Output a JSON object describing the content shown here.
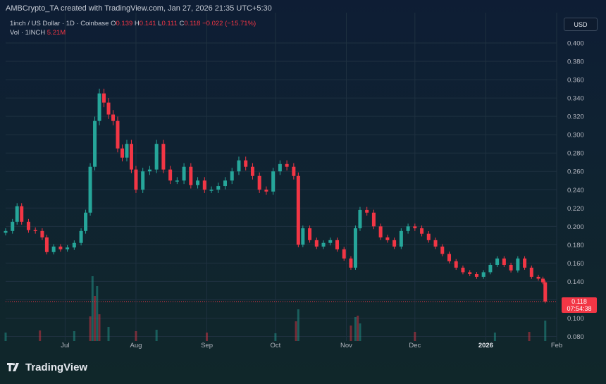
{
  "header": {
    "created_line": "AMBCrypto_TA created with TradingView.com, Jan 27, 2026 21:35 UTC+5:30"
  },
  "legend": {
    "symbol": "1inch / US Dollar · 1D · Coinbase",
    "o_label": "O",
    "o_value": "0.139",
    "h_label": "H",
    "h_value": "0.141",
    "l_label": "L",
    "l_value": "0.111",
    "c_label": "C",
    "c_value": "0.118",
    "change": "−0.022 (−15.71%)",
    "vol_label": "Vol · 1INCH",
    "vol_value": "5.21M"
  },
  "currency_button": "USD",
  "price_tag": {
    "price": "0.118",
    "countdown": "07:54:38"
  },
  "brand": {
    "name": "TradingView"
  },
  "colors": {
    "up": "#26a69a",
    "down": "#f23645",
    "axis_text": "#b2b5be"
  },
  "chart_data": {
    "type": "candlestick",
    "title": "",
    "xlabel": "",
    "ylabel": "",
    "ylim": [
      0.075,
      0.41
    ],
    "y_ticks": [
      "0.400",
      "0.380",
      "0.360",
      "0.340",
      "0.320",
      "0.300",
      "0.280",
      "0.260",
      "0.240",
      "0.220",
      "0.200",
      "0.180",
      "0.160",
      "0.140",
      "0.120",
      "0.100",
      "0.080"
    ],
    "x_ticks": [
      {
        "label": "Jul",
        "date": "2025-07-01",
        "bold": false
      },
      {
        "label": "Aug",
        "date": "2025-08-01",
        "bold": false
      },
      {
        "label": "Sep",
        "date": "2025-09-01",
        "bold": false
      },
      {
        "label": "Oct",
        "date": "2025-10-01",
        "bold": false
      },
      {
        "label": "Nov",
        "date": "2025-11-01",
        "bold": false
      },
      {
        "label": "Dec",
        "date": "2025-12-01",
        "bold": false
      },
      {
        "label": "2026",
        "date": "2026-01-01",
        "bold": true
      },
      {
        "label": "Feb",
        "date": "2026-02-01",
        "bold": false
      }
    ],
    "x_range": [
      "2025-06-05",
      "2026-02-01"
    ],
    "series": [
      {
        "date": "2025-06-05",
        "close": 0.195
      },
      {
        "date": "2025-06-08",
        "close": 0.205
      },
      {
        "date": "2025-06-10",
        "close": 0.222
      },
      {
        "date": "2025-06-12",
        "close": 0.205
      },
      {
        "date": "2025-06-15",
        "close": 0.196
      },
      {
        "date": "2025-06-18",
        "close": 0.195
      },
      {
        "date": "2025-06-21",
        "close": 0.188
      },
      {
        "date": "2025-06-23",
        "close": 0.172
      },
      {
        "date": "2025-06-26",
        "close": 0.178
      },
      {
        "date": "2025-06-29",
        "close": 0.175
      },
      {
        "date": "2025-07-02",
        "close": 0.177
      },
      {
        "date": "2025-07-05",
        "close": 0.182
      },
      {
        "date": "2025-07-08",
        "close": 0.195
      },
      {
        "date": "2025-07-10",
        "close": 0.215
      },
      {
        "date": "2025-07-12",
        "close": 0.265
      },
      {
        "date": "2025-07-14",
        "close": 0.315
      },
      {
        "date": "2025-07-16",
        "close": 0.345
      },
      {
        "date": "2025-07-18",
        "close": 0.335
      },
      {
        "date": "2025-07-20",
        "close": 0.322
      },
      {
        "date": "2025-07-22",
        "close": 0.315
      },
      {
        "date": "2025-07-24",
        "close": 0.285
      },
      {
        "date": "2025-07-26",
        "close": 0.275
      },
      {
        "date": "2025-07-28",
        "close": 0.29
      },
      {
        "date": "2025-07-30",
        "close": 0.262
      },
      {
        "date": "2025-08-01",
        "close": 0.24
      },
      {
        "date": "2025-08-04",
        "close": 0.26
      },
      {
        "date": "2025-08-07",
        "close": 0.262
      },
      {
        "date": "2025-08-10",
        "close": 0.29
      },
      {
        "date": "2025-08-13",
        "close": 0.262
      },
      {
        "date": "2025-08-16",
        "close": 0.25
      },
      {
        "date": "2025-08-19",
        "close": 0.25
      },
      {
        "date": "2025-08-22",
        "close": 0.265
      },
      {
        "date": "2025-08-25",
        "close": 0.245
      },
      {
        "date": "2025-08-28",
        "close": 0.25
      },
      {
        "date": "2025-08-31",
        "close": 0.24
      },
      {
        "date": "2025-09-03",
        "close": 0.24
      },
      {
        "date": "2025-09-06",
        "close": 0.244
      },
      {
        "date": "2025-09-09",
        "close": 0.25
      },
      {
        "date": "2025-09-12",
        "close": 0.26
      },
      {
        "date": "2025-09-15",
        "close": 0.272
      },
      {
        "date": "2025-09-18",
        "close": 0.265
      },
      {
        "date": "2025-09-21",
        "close": 0.255
      },
      {
        "date": "2025-09-24",
        "close": 0.24
      },
      {
        "date": "2025-09-27",
        "close": 0.238
      },
      {
        "date": "2025-09-30",
        "close": 0.26
      },
      {
        "date": "2025-10-03",
        "close": 0.268
      },
      {
        "date": "2025-10-06",
        "close": 0.265
      },
      {
        "date": "2025-10-09",
        "close": 0.255
      },
      {
        "date": "2025-10-11",
        "close": 0.18
      },
      {
        "date": "2025-10-13",
        "close": 0.198
      },
      {
        "date": "2025-10-16",
        "close": 0.185
      },
      {
        "date": "2025-10-19",
        "close": 0.178
      },
      {
        "date": "2025-10-22",
        "close": 0.182
      },
      {
        "date": "2025-10-25",
        "close": 0.185
      },
      {
        "date": "2025-10-28",
        "close": 0.175
      },
      {
        "date": "2025-10-31",
        "close": 0.165
      },
      {
        "date": "2025-11-03",
        "close": 0.155
      },
      {
        "date": "2025-11-05",
        "close": 0.198
      },
      {
        "date": "2025-11-07",
        "close": 0.218
      },
      {
        "date": "2025-11-10",
        "close": 0.215
      },
      {
        "date": "2025-11-13",
        "close": 0.2
      },
      {
        "date": "2025-11-16",
        "close": 0.188
      },
      {
        "date": "2025-11-19",
        "close": 0.185
      },
      {
        "date": "2025-11-22",
        "close": 0.178
      },
      {
        "date": "2025-11-25",
        "close": 0.195
      },
      {
        "date": "2025-11-28",
        "close": 0.2
      },
      {
        "date": "2025-12-01",
        "close": 0.198
      },
      {
        "date": "2025-12-04",
        "close": 0.192
      },
      {
        "date": "2025-12-07",
        "close": 0.185
      },
      {
        "date": "2025-12-10",
        "close": 0.178
      },
      {
        "date": "2025-12-13",
        "close": 0.17
      },
      {
        "date": "2025-12-16",
        "close": 0.162
      },
      {
        "date": "2025-12-19",
        "close": 0.155
      },
      {
        "date": "2025-12-22",
        "close": 0.15
      },
      {
        "date": "2025-12-25",
        "close": 0.148
      },
      {
        "date": "2025-12-28",
        "close": 0.145
      },
      {
        "date": "2025-12-31",
        "close": 0.15
      },
      {
        "date": "2026-01-03",
        "close": 0.158
      },
      {
        "date": "2026-01-06",
        "close": 0.165
      },
      {
        "date": "2026-01-09",
        "close": 0.158
      },
      {
        "date": "2026-01-12",
        "close": 0.152
      },
      {
        "date": "2026-01-15",
        "close": 0.165
      },
      {
        "date": "2026-01-18",
        "close": 0.155
      },
      {
        "date": "2026-01-21",
        "close": 0.145
      },
      {
        "date": "2026-01-24",
        "close": 0.143
      },
      {
        "date": "2026-01-26",
        "close": 0.139
      },
      {
        "date": "2026-01-27",
        "close": 0.118
      }
    ],
    "volume": [
      {
        "date": "2025-06-05",
        "value": 1.2
      },
      {
        "date": "2025-06-20",
        "value": 1.5
      },
      {
        "date": "2025-07-05",
        "value": 1.4
      },
      {
        "date": "2025-07-12",
        "value": 3.5
      },
      {
        "date": "2025-07-13",
        "value": 9.2
      },
      {
        "date": "2025-07-14",
        "value": 6.4
      },
      {
        "date": "2025-07-15",
        "value": 7.8
      },
      {
        "date": "2025-07-16",
        "value": 3.8
      },
      {
        "date": "2025-07-20",
        "value": 2.0
      },
      {
        "date": "2025-08-01",
        "value": 1.4
      },
      {
        "date": "2025-08-10",
        "value": 1.6
      },
      {
        "date": "2025-09-01",
        "value": 1.2
      },
      {
        "date": "2025-10-01",
        "value": 1.1
      },
      {
        "date": "2025-10-10",
        "value": 2.8
      },
      {
        "date": "2025-10-11",
        "value": 4.5
      },
      {
        "date": "2025-11-03",
        "value": 2.2
      },
      {
        "date": "2025-11-05",
        "value": 3.4
      },
      {
        "date": "2025-11-06",
        "value": 3.6
      },
      {
        "date": "2025-11-07",
        "value": 2.5
      },
      {
        "date": "2025-12-01",
        "value": 1.3
      },
      {
        "date": "2026-01-05",
        "value": 1.2
      },
      {
        "date": "2026-01-20",
        "value": 1.3
      },
      {
        "date": "2026-01-27",
        "value": 2.9
      }
    ]
  }
}
